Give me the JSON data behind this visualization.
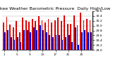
{
  "title": "Milwaukee Weather Barometric Pressure  Daily High/Low",
  "high_values": [
    30.12,
    30.35,
    30.05,
    29.92,
    30.18,
    29.72,
    30.32,
    30.22,
    30.15,
    30.28,
    30.18,
    30.38,
    30.22,
    30.12,
    30.28,
    30.12,
    30.22,
    30.32,
    30.18,
    30.42,
    30.08,
    30.08,
    30.42,
    30.02,
    30.52,
    30.22,
    30.28,
    30.22
  ],
  "low_values": [
    29.72,
    29.82,
    29.52,
    29.42,
    29.52,
    29.32,
    29.82,
    29.82,
    29.72,
    29.92,
    29.82,
    30.02,
    29.82,
    29.72,
    29.62,
    29.52,
    29.62,
    29.62,
    29.42,
    29.52,
    29.62,
    29.32,
    29.92,
    29.22,
    29.72,
    29.82,
    29.72,
    29.72
  ],
  "ylim": [
    29.0,
    30.6
  ],
  "yticks": [
    29.0,
    29.2,
    29.4,
    29.6,
    29.8,
    30.0,
    30.2,
    30.4,
    30.6
  ],
  "high_color": "#dd0000",
  "low_color": "#0000cc",
  "background_color": "#ffffff",
  "title_fontsize": 4.5,
  "bar_width": 0.4,
  "dpi": 100,
  "figsize": [
    1.6,
    0.87
  ]
}
